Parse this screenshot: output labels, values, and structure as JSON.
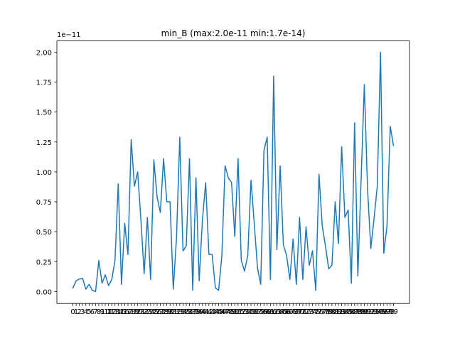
{
  "chart_data": {
    "type": "line",
    "title": "min_B (max:2.0e-11 min:1.7e-14)",
    "xlabel": "",
    "ylabel": "",
    "y_offset_label": "1e−11",
    "y_scale_exponent": -11,
    "xlim": [
      -4.95,
      103.95
    ],
    "ylim": [
      -0.0998,
      2.0942
    ],
    "y_ticks": [
      0.0,
      0.25,
      0.5,
      0.75,
      1.0,
      1.25,
      1.5,
      1.75,
      2.0
    ],
    "y_tick_labels": [
      "0.00",
      "0.25",
      "0.50",
      "0.75",
      "1.00",
      "1.25",
      "1.50",
      "1.75",
      "2.00"
    ],
    "x_ticks": [
      0,
      1,
      2,
      3,
      4,
      5,
      6,
      7,
      8,
      9,
      10,
      11,
      12,
      13,
      14,
      15,
      16,
      17,
      18,
      19,
      20,
      21,
      22,
      23,
      24,
      25,
      26,
      27,
      28,
      29,
      30,
      31,
      32,
      33,
      34,
      35,
      36,
      37,
      38,
      39,
      40,
      41,
      42,
      43,
      44,
      45,
      46,
      47,
      48,
      49,
      50,
      51,
      52,
      53,
      54,
      55,
      56,
      57,
      58,
      59,
      60,
      61,
      62,
      63,
      64,
      65,
      66,
      67,
      68,
      69,
      70,
      71,
      72,
      73,
      74,
      75,
      76,
      77,
      78,
      79,
      80,
      81,
      82,
      83,
      84,
      85,
      86,
      87,
      88,
      89,
      90,
      91,
      92,
      93,
      94,
      95,
      96,
      97,
      98,
      99
    ],
    "grid": false,
    "series": [
      {
        "color": "#1f77b4",
        "x": [
          0,
          1,
          2,
          3,
          4,
          5,
          6,
          7,
          8,
          9,
          10,
          11,
          12,
          13,
          14,
          15,
          16,
          17,
          18,
          19,
          20,
          21,
          22,
          23,
          24,
          25,
          26,
          27,
          28,
          29,
          30,
          31,
          32,
          33,
          34,
          35,
          36,
          37,
          38,
          39,
          40,
          41,
          42,
          43,
          44,
          45,
          46,
          47,
          48,
          49,
          50,
          51,
          52,
          53,
          54,
          55,
          56,
          57,
          58,
          59,
          60,
          61,
          62,
          63,
          64,
          65,
          66,
          67,
          68,
          69,
          70,
          71,
          72,
          73,
          74,
          75,
          76,
          77,
          78,
          79,
          80,
          81,
          82,
          83,
          84,
          85,
          86,
          87,
          88,
          89,
          90,
          91,
          92,
          93,
          94,
          95,
          96,
          97,
          98,
          99
        ],
        "y": [
          0.03,
          0.09,
          0.105,
          0.11,
          0.02,
          0.06,
          0.01,
          0.0,
          0.26,
          0.07,
          0.14,
          0.05,
          0.1,
          0.26,
          0.9,
          0.06,
          0.57,
          0.31,
          1.27,
          0.88,
          1.0,
          0.6,
          0.15,
          0.62,
          0.1,
          1.1,
          0.79,
          0.66,
          1.11,
          0.75,
          0.75,
          0.02,
          0.45,
          1.29,
          0.34,
          0.38,
          1.11,
          0.01,
          0.95,
          0.09,
          0.6,
          0.91,
          0.31,
          0.31,
          0.03,
          0.01,
          0.3,
          1.05,
          0.95,
          0.91,
          0.46,
          1.11,
          0.26,
          0.17,
          0.3,
          0.93,
          0.57,
          0.2,
          0.06,
          1.18,
          1.29,
          0.1,
          1.8,
          0.35,
          1.05,
          0.39,
          0.3,
          0.1,
          0.44,
          0.06,
          0.62,
          0.1,
          0.54,
          0.22,
          0.34,
          0.01,
          0.98,
          0.55,
          0.38,
          0.19,
          0.22,
          0.75,
          0.4,
          1.21,
          0.62,
          0.68,
          0.07,
          1.41,
          0.13,
          0.93,
          1.73,
          0.85,
          0.36,
          0.61,
          0.88,
          2.0,
          0.32,
          0.55,
          1.38,
          1.22
        ]
      }
    ]
  }
}
